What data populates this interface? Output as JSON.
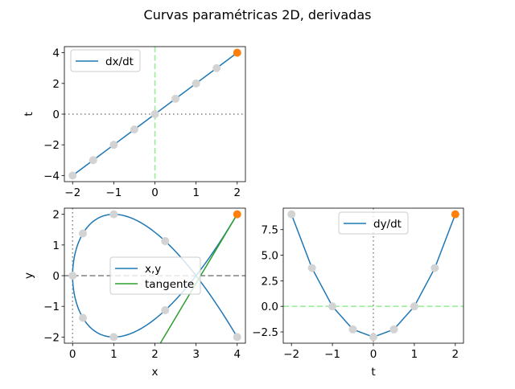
{
  "figure": {
    "title": "Curvas paramétricas 2D, derivadas"
  },
  "chart_data": [
    {
      "id": "dxdt",
      "type": "line",
      "xlabel": "",
      "ylabel": "t",
      "xlim": [
        -2.2,
        2.2
      ],
      "ylim": [
        -4.4,
        4.4
      ],
      "xticks": [
        -2,
        -1,
        0,
        1,
        2
      ],
      "yticks": [
        -4,
        -2,
        0,
        2,
        4
      ],
      "series": [
        {
          "name": "dx/dt",
          "x": [
            -2,
            -1.5,
            -1,
            -0.5,
            0,
            0.5,
            1,
            1.5,
            2
          ],
          "y": [
            -4,
            -3,
            -2,
            -1,
            0,
            1,
            2,
            3,
            4
          ],
          "color": "#1f77b4"
        }
      ],
      "markers": {
        "x": [
          -2,
          -1.5,
          -1,
          -0.5,
          0,
          0.5,
          1,
          1.5
        ],
        "y": [
          -4,
          -3,
          -2,
          -1,
          0,
          1,
          2,
          3
        ],
        "color": "#d3d3d3"
      },
      "current": {
        "x": 2,
        "y": 4,
        "color": "#ff7f0e"
      },
      "hline": {
        "y": 0,
        "color": "#808080",
        "style": "dotted"
      },
      "vline": {
        "x": 0,
        "color": "#90ee90",
        "style": "dashed"
      },
      "legend": "upper-left"
    },
    {
      "id": "xy",
      "type": "line",
      "xlabel": "x",
      "ylabel": "y",
      "xlim": [
        -0.2,
        4.2
      ],
      "ylim": [
        -2.2,
        2.2
      ],
      "xticks": [
        0,
        1,
        2,
        3,
        4
      ],
      "yticks": [
        -2,
        -1,
        0,
        1,
        2
      ],
      "series": [
        {
          "name": "x,y",
          "curve": "x = t², y = t³ − 3t, t ∈ [−2, 2]",
          "color": "#1f77b4"
        },
        {
          "name": "tangente",
          "x": [
            2.133,
            4
          ],
          "y": [
            -2.2,
            2
          ],
          "color": "#2ca02c"
        }
      ],
      "markers": {
        "x": [
          4,
          2.25,
          1,
          0.25,
          0,
          0.25,
          1,
          2.25
        ],
        "y": [
          -2,
          1.125,
          2,
          1.375,
          0,
          -1.375,
          -2,
          -1.125
        ],
        "color": "#d3d3d3"
      },
      "current": {
        "x": 4,
        "y": 2,
        "color": "#ff7f0e"
      },
      "hline": {
        "y": 0,
        "color": "#808080",
        "style": "dashed"
      },
      "vline": {
        "x": 0,
        "color": "#808080",
        "style": "dotted"
      },
      "legend": "center"
    },
    {
      "id": "dydt",
      "type": "line",
      "xlabel": "t",
      "ylabel": "",
      "xlim": [
        -2.2,
        2.2
      ],
      "ylim": [
        -3.6,
        9.6
      ],
      "xticks": [
        -2,
        -1,
        0,
        1,
        2
      ],
      "yticks": [
        -2.5,
        0.0,
        2.5,
        5.0,
        7.5
      ],
      "ytick_labels": [
        "−2.5",
        "0.0",
        "2.5",
        "5.0",
        "7.5"
      ],
      "series": [
        {
          "name": "dy/dt",
          "x": [
            -2,
            -1.5,
            -1,
            -0.5,
            0,
            0.5,
            1,
            1.5,
            2
          ],
          "y": [
            9,
            3.75,
            0,
            -2.25,
            -3,
            -2.25,
            0,
            3.75,
            9
          ],
          "color": "#1f77b4"
        }
      ],
      "markers": {
        "x": [
          -2,
          -1.5,
          -1,
          -0.5,
          0,
          0.5,
          1,
          1.5
        ],
        "y": [
          9,
          3.75,
          0,
          -2.25,
          -3,
          -2.25,
          0,
          3.75
        ],
        "color": "#d3d3d3"
      },
      "current": {
        "x": 2,
        "y": 9,
        "color": "#ff7f0e"
      },
      "hline": {
        "y": 0,
        "color": "#90ee90",
        "style": "dashed"
      },
      "vline": {
        "x": 0,
        "color": "#808080",
        "style": "dotted"
      },
      "legend": "upper-center"
    }
  ]
}
